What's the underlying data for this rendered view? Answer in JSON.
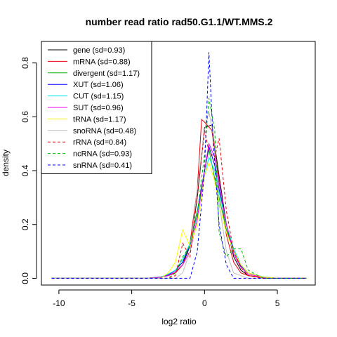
{
  "chart_data": {
    "type": "line",
    "title": "number read ratio rad50.G1.1/WT.MMS.2",
    "xlabel": "log2 ratio",
    "ylabel": "density",
    "xlim": [
      -11.2,
      7.6
    ],
    "ylim": [
      -0.025,
      0.88
    ],
    "xticks": [
      -10,
      -5,
      0,
      5
    ],
    "yticks": [
      0.0,
      0.2,
      0.4,
      0.6,
      0.8
    ],
    "grid": false,
    "legend_position": "top-left",
    "series": [
      {
        "name": "gene (sd=0.93)",
        "color": "#000000",
        "dash": "solid",
        "x": [
          -10.5,
          -4,
          -3,
          -2.5,
          -2,
          -1.5,
          -1,
          -0.5,
          0,
          0.5,
          1,
          1.5,
          2,
          2.5,
          3,
          4,
          5,
          6,
          7
        ],
        "y": [
          0,
          0,
          0.005,
          0.01,
          0.02,
          0.05,
          0.12,
          0.3,
          0.56,
          0.57,
          0.38,
          0.2,
          0.08,
          0.03,
          0.01,
          0.003,
          0,
          0,
          0
        ]
      },
      {
        "name": "mRNA (sd=0.88)",
        "color": "#e8000b",
        "dash": "solid",
        "x": [
          -10.5,
          -4,
          -3,
          -2.5,
          -2,
          -1.5,
          -1,
          -0.5,
          -0.2,
          0,
          0.5,
          1,
          1.5,
          2,
          2.5,
          3,
          4,
          5,
          6,
          7
        ],
        "y": [
          0,
          0,
          0.005,
          0.01,
          0.02,
          0.05,
          0.13,
          0.33,
          0.59,
          0.58,
          0.55,
          0.36,
          0.16,
          0.06,
          0.02,
          0.01,
          0.003,
          0,
          0,
          0
        ]
      },
      {
        "name": "divergent (sd=1.17)",
        "color": "#00b400",
        "dash": "solid",
        "x": [
          -10.5,
          -4,
          -3,
          -2.5,
          -2,
          -1.5,
          -1,
          -0.5,
          0,
          0.3,
          0.7,
          1,
          1.5,
          2,
          2.5,
          3,
          4,
          5,
          6,
          7
        ],
        "y": [
          0,
          0,
          0.005,
          0.015,
          0.03,
          0.06,
          0.13,
          0.25,
          0.4,
          0.48,
          0.37,
          0.3,
          0.18,
          0.1,
          0.05,
          0.02,
          0.005,
          0,
          0,
          0
        ]
      },
      {
        "name": "XUT (sd=1.06)",
        "color": "#0000ff",
        "dash": "solid",
        "x": [
          -10.5,
          -4,
          -3,
          -2.5,
          -2,
          -1.5,
          -1,
          -0.5,
          0,
          0.3,
          0.7,
          1,
          1.5,
          2,
          2.5,
          3,
          4,
          5,
          6,
          7
        ],
        "y": [
          0,
          0,
          0.004,
          0.012,
          0.03,
          0.06,
          0.12,
          0.24,
          0.4,
          0.49,
          0.42,
          0.33,
          0.2,
          0.1,
          0.045,
          0.02,
          0.005,
          0,
          0,
          0
        ]
      },
      {
        "name": "CUT (sd=1.15)",
        "color": "#00e5e5",
        "dash": "solid",
        "x": [
          -10.5,
          -4,
          -3,
          -2.5,
          -2,
          -1.5,
          -1,
          -0.5,
          0,
          0.3,
          0.7,
          1,
          1.5,
          2,
          2.5,
          3,
          4,
          5,
          6,
          7
        ],
        "y": [
          0,
          0,
          0.005,
          0.015,
          0.03,
          0.07,
          0.13,
          0.24,
          0.38,
          0.45,
          0.4,
          0.32,
          0.2,
          0.11,
          0.05,
          0.02,
          0.006,
          0,
          0,
          0
        ]
      },
      {
        "name": "SUT (sd=0.96)",
        "color": "#ee00ee",
        "dash": "solid",
        "x": [
          -10.5,
          -4,
          -3,
          -2.5,
          -2,
          -1.5,
          -1,
          -0.5,
          0,
          0.3,
          0.7,
          1,
          1.5,
          2,
          2.5,
          3,
          4,
          5,
          6,
          7
        ],
        "y": [
          0,
          0,
          0.004,
          0.01,
          0.025,
          0.05,
          0.1,
          0.22,
          0.4,
          0.5,
          0.45,
          0.35,
          0.2,
          0.09,
          0.04,
          0.015,
          0.004,
          0,
          0,
          0
        ]
      },
      {
        "name": "tRNA (sd=1.17)",
        "color": "#ffff00",
        "dash": "solid",
        "x": [
          -10.5,
          -4,
          -3,
          -2.5,
          -2,
          -1.5,
          -1,
          -0.5,
          0,
          0.3,
          0.7,
          1,
          1.5,
          2,
          2.5,
          3,
          4,
          5,
          6,
          7
        ],
        "y": [
          0,
          0,
          0,
          0.02,
          0.06,
          0.18,
          0.12,
          0.2,
          0.38,
          0.43,
          0.36,
          0.27,
          0.17,
          0.1,
          0.05,
          0.02,
          0.005,
          0,
          0,
          0
        ]
      },
      {
        "name": "snoRNA (sd=0.48)",
        "color": "#bebebe",
        "dash": "solid",
        "x": [
          -10.5,
          -3,
          -2,
          -1.5,
          -1,
          -0.5,
          0,
          0.3,
          0.7,
          1,
          1.5,
          2,
          3,
          7
        ],
        "y": [
          0,
          0,
          0,
          0.02,
          0.1,
          0.33,
          0.55,
          0.62,
          0.5,
          0.28,
          0.1,
          0.02,
          0,
          0
        ]
      },
      {
        "name": "rRNA (sd=0.84)",
        "color": "#e8000b",
        "dash": "dashed",
        "x": [
          -10.5,
          -3,
          -2.5,
          -2,
          -1.5,
          -1,
          -0.5,
          0,
          0.3,
          0.7,
          1,
          1.5,
          2,
          2.5,
          3,
          4,
          5,
          7
        ],
        "y": [
          0,
          0,
          0,
          0.01,
          0.13,
          0.08,
          0.3,
          0.55,
          0.47,
          0.45,
          0.52,
          0.25,
          0.1,
          0.04,
          0.01,
          0,
          0,
          0
        ]
      },
      {
        "name": "ncRNA (sd=0.93)",
        "color": "#00b400",
        "dash": "dashed",
        "x": [
          -10.5,
          -3,
          -2.5,
          -2,
          -1.5,
          -1,
          -0.5,
          0,
          0.3,
          0.7,
          1,
          1.5,
          2,
          2.5,
          3,
          4,
          5,
          7
        ],
        "y": [
          0,
          0,
          0,
          0.02,
          0.08,
          0.12,
          0.24,
          0.46,
          0.67,
          0.55,
          0.17,
          0.08,
          0.11,
          0.11,
          0.03,
          0,
          0,
          0
        ]
      },
      {
        "name": "snRNA (sd=0.41)",
        "color": "#0000ff",
        "dash": "dashed",
        "x": [
          -10.5,
          -3,
          -1.5,
          -1,
          -0.5,
          0,
          0.3,
          0.6,
          1,
          1.5,
          2,
          3,
          7
        ],
        "y": [
          0,
          0,
          0,
          0,
          0.1,
          0.4,
          0.84,
          0.5,
          0.2,
          0.05,
          0,
          0,
          0
        ]
      }
    ]
  }
}
